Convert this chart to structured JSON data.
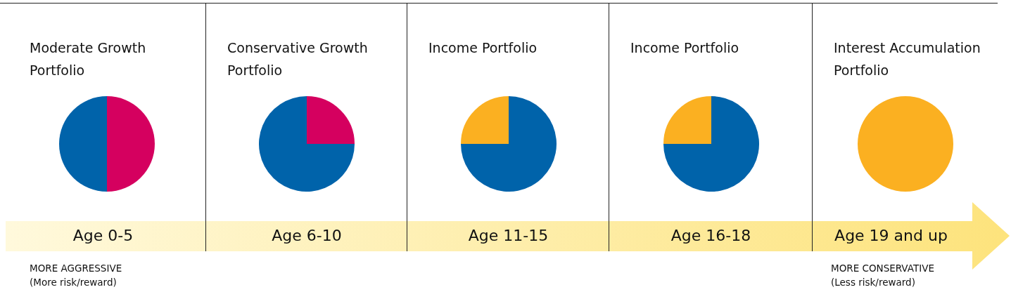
{
  "chart_data": [
    {
      "type": "pie",
      "title": "Moderate Growth Portfolio",
      "categories": [
        null,
        null
      ],
      "values": [
        50,
        50
      ],
      "colors": [
        "#d5005f",
        "#0063aa"
      ],
      "annotations": [
        "Age 0-5",
        "MORE AGGRESSIVE",
        "(More risk/reward)"
      ]
    },
    {
      "type": "pie",
      "title": "Conservative Growth Portfolio",
      "categories": [
        null,
        null
      ],
      "values": [
        25,
        75
      ],
      "colors": [
        "#d5005f",
        "#0063aa"
      ],
      "annotations": [
        "Age 6-10"
      ]
    },
    {
      "type": "pie",
      "title": "Income Portfolio",
      "categories": [
        null,
        null
      ],
      "values": [
        75,
        25
      ],
      "colors": [
        "#0063aa",
        "#fbb021"
      ],
      "annotations": [
        "Age 11-15"
      ]
    },
    {
      "type": "pie",
      "title": "Income Portfolio",
      "categories": [
        null,
        null
      ],
      "values": [
        75,
        25
      ],
      "colors": [
        "#0063aa",
        "#fbb021"
      ],
      "annotations": [
        "Age 16-18"
      ]
    },
    {
      "type": "pie",
      "title": "Interest Accumulation Portfolio",
      "categories": [
        null
      ],
      "values": [
        100
      ],
      "colors": [
        "#fbb021"
      ],
      "annotations": [
        "Age 19 and up",
        "MORE CONSERVATIVE",
        "(Less risk/reward)"
      ]
    }
  ]
}
